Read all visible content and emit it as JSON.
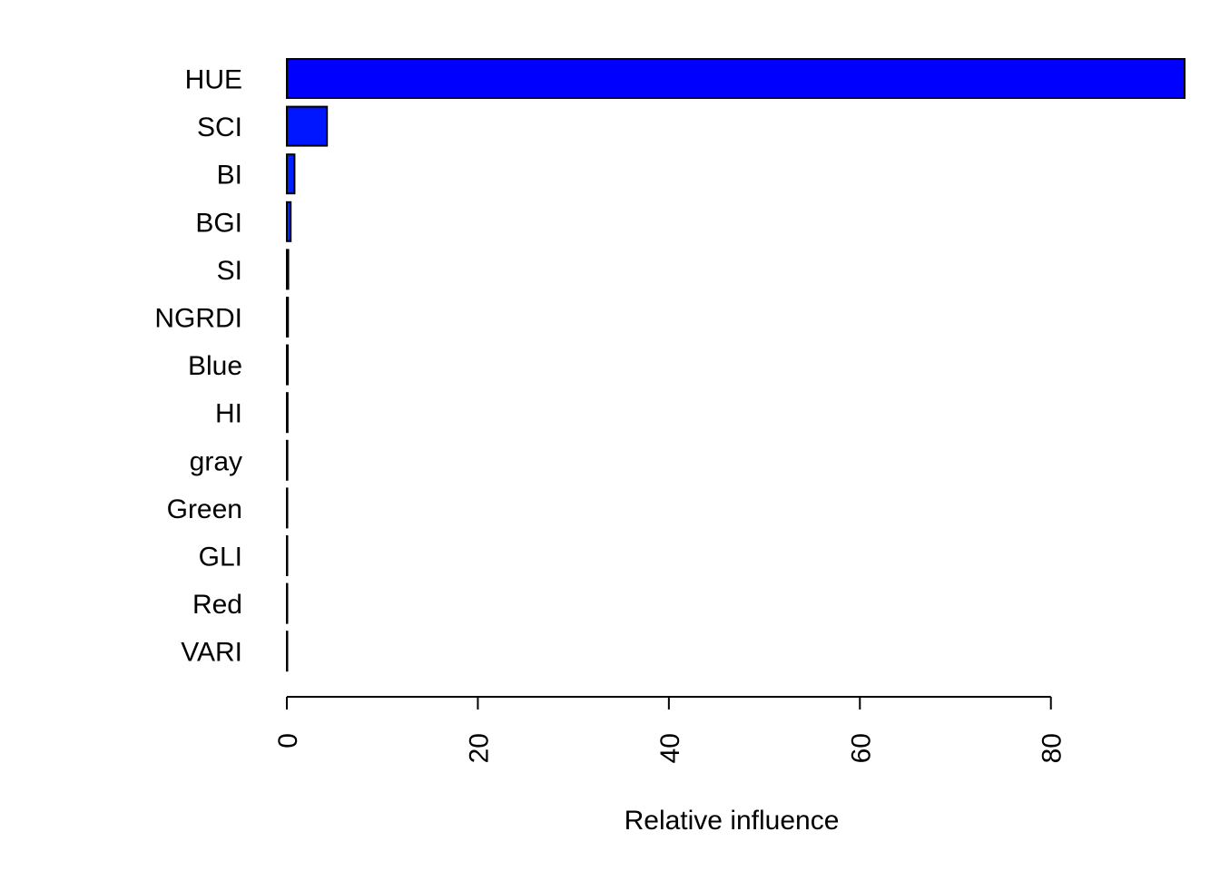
{
  "chart_data": {
    "type": "bar",
    "orientation": "horizontal",
    "categories": [
      "HUE",
      "SCI",
      "BI",
      "BGI",
      "SI",
      "NGRDI",
      "Blue",
      "HI",
      "gray",
      "Green",
      "GLI",
      "Red",
      "VARI"
    ],
    "values": [
      94.0,
      4.2,
      0.8,
      0.4,
      0.15,
      0.12,
      0.1,
      0.08,
      0.06,
      0.05,
      0.04,
      0.03,
      0.02
    ],
    "bar_colors": [
      "#0000ff",
      "#0016ff",
      "#0021ff",
      "#0029ff",
      "#002fff",
      "#0034ff",
      "#0038ff",
      "#003cff",
      "#003fff",
      "#0042ff",
      "#0045ff",
      "#0047ff",
      "#004aff"
    ],
    "xlim": [
      0,
      94
    ],
    "x_ticks": [
      0,
      20,
      40,
      60,
      80
    ],
    "x_tick_labels": [
      "0",
      "20",
      "40",
      "60",
      "80"
    ],
    "xlabel": "Relative influence",
    "ylabel": "",
    "title": "",
    "grid": false,
    "legend": "none"
  }
}
